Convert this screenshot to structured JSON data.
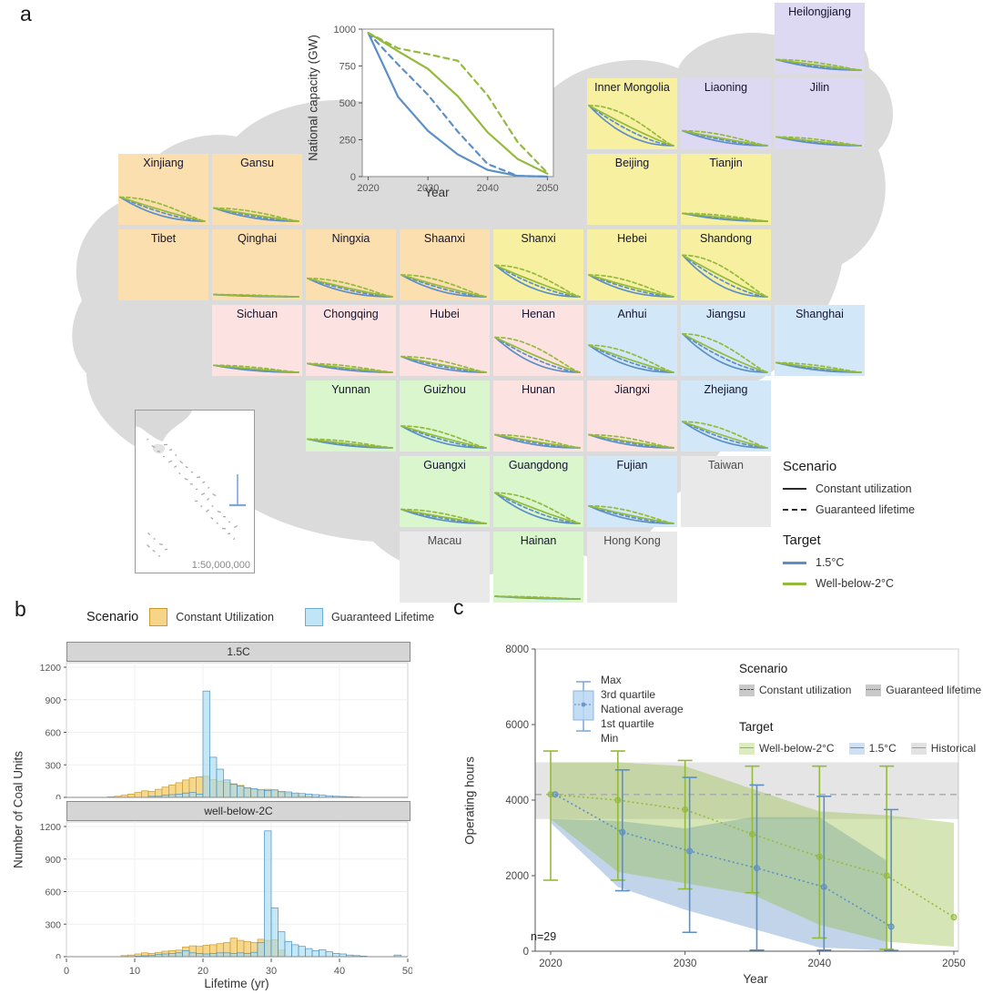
{
  "panels": {
    "a": "a",
    "b": "b",
    "c": "c"
  },
  "colors": {
    "target_blue": "#5d8fc7",
    "target_green": "#94ba3c",
    "hist_orange_fill": "#f6d588",
    "hist_orange_stroke": "#c99a28",
    "hist_blue_fill": "#a8daf0",
    "hist_blue_stroke": "#4b93c1",
    "map_gray": "#d9d9d9",
    "group_fills": {
      "northwest": "#fbdfae",
      "north": "#f6f0a0",
      "northeast": "#ded9f2",
      "central": "#fce3e1",
      "east": "#d2e8f8",
      "south": "#d9f6cd",
      "nodata": "#e9e9e9"
    }
  },
  "panel_a": {
    "legend": {
      "scenario_title": "Scenario",
      "scenario_items": [
        {
          "label": "Constant utilization",
          "style": "solid"
        },
        {
          "label": "Guaranteed lifetime",
          "style": "dashed"
        }
      ],
      "target_title": "Target",
      "target_items": [
        {
          "label": "1.5°C",
          "color": "#5d8fc7"
        },
        {
          "label": "Well-below-2°C",
          "color": "#94ba3c"
        }
      ]
    },
    "map_scale_label": "1:50,000,000",
    "tiles": [
      {
        "name": "Heilongjiang",
        "col": 7,
        "row": 0,
        "group": "northeast",
        "magnitude": 0.24
      },
      {
        "name": "Inner Mongolia",
        "col": 5,
        "row": 1,
        "group": "north",
        "magnitude": 0.92
      },
      {
        "name": "Liaoning",
        "col": 6,
        "row": 1,
        "group": "northeast",
        "magnitude": 0.34
      },
      {
        "name": "Jilin",
        "col": 7,
        "row": 1,
        "group": "northeast",
        "magnitude": 0.2
      },
      {
        "name": "Xinjiang",
        "col": 0,
        "row": 2,
        "group": "northwest",
        "magnitude": 0.55
      },
      {
        "name": "Gansu",
        "col": 1,
        "row": 2,
        "group": "northwest",
        "magnitude": 0.3
      },
      {
        "name": "Beijing",
        "col": 5,
        "row": 2,
        "group": "north",
        "magnitude": 0
      },
      {
        "name": "Tianjin",
        "col": 6,
        "row": 2,
        "group": "north",
        "magnitude": 0.18
      },
      {
        "name": "Tibet",
        "col": 0,
        "row": 3,
        "group": "northwest",
        "magnitude": 0
      },
      {
        "name": "Qinghai",
        "col": 1,
        "row": 3,
        "group": "northwest",
        "magnitude": 0.05
      },
      {
        "name": "Ningxia",
        "col": 2,
        "row": 3,
        "group": "northwest",
        "magnitude": 0.42
      },
      {
        "name": "Shaanxi",
        "col": 3,
        "row": 3,
        "group": "northwest",
        "magnitude": 0.5
      },
      {
        "name": "Shanxi",
        "col": 4,
        "row": 3,
        "group": "north",
        "magnitude": 0.72
      },
      {
        "name": "Hebei",
        "col": 5,
        "row": 3,
        "group": "north",
        "magnitude": 0.5
      },
      {
        "name": "Shandong",
        "col": 6,
        "row": 3,
        "group": "north",
        "magnitude": 0.95
      },
      {
        "name": "Sichuan",
        "col": 1,
        "row": 4,
        "group": "central",
        "magnitude": 0.16
      },
      {
        "name": "Chongqing",
        "col": 2,
        "row": 4,
        "group": "central",
        "magnitude": 0.2
      },
      {
        "name": "Hubei",
        "col": 3,
        "row": 4,
        "group": "central",
        "magnitude": 0.36
      },
      {
        "name": "Henan",
        "col": 4,
        "row": 4,
        "group": "central",
        "magnitude": 0.8
      },
      {
        "name": "Anhui",
        "col": 5,
        "row": 4,
        "group": "east",
        "magnitude": 0.62
      },
      {
        "name": "Jiangsu",
        "col": 6,
        "row": 4,
        "group": "east",
        "magnitude": 0.88
      },
      {
        "name": "Shanghai",
        "col": 7,
        "row": 4,
        "group": "east",
        "magnitude": 0.22
      },
      {
        "name": "Yunnan",
        "col": 2,
        "row": 5,
        "group": "south",
        "magnitude": 0.2
      },
      {
        "name": "Guizhou",
        "col": 3,
        "row": 5,
        "group": "south",
        "magnitude": 0.5
      },
      {
        "name": "Hunan",
        "col": 4,
        "row": 5,
        "group": "central",
        "magnitude": 0.3
      },
      {
        "name": "Jiangxi",
        "col": 5,
        "row": 5,
        "group": "central",
        "magnitude": 0.3
      },
      {
        "name": "Zhejiang",
        "col": 6,
        "row": 5,
        "group": "east",
        "magnitude": 0.6
      },
      {
        "name": "Guangxi",
        "col": 3,
        "row": 6,
        "group": "south",
        "magnitude": 0.32
      },
      {
        "name": "Guangdong",
        "col": 4,
        "row": 6,
        "group": "south",
        "magnitude": 0.7
      },
      {
        "name": "Fujian",
        "col": 5,
        "row": 6,
        "group": "east",
        "magnitude": 0.4
      },
      {
        "name": "Taiwan",
        "col": 6,
        "row": 6,
        "group": "nodata",
        "magnitude": 0
      },
      {
        "name": "Macau",
        "col": 3,
        "row": 7,
        "group": "nodata",
        "magnitude": 0
      },
      {
        "name": "Hainan",
        "col": 4,
        "row": 7,
        "group": "south",
        "magnitude": 0.06
      },
      {
        "name": "Hong Kong",
        "col": 5,
        "row": 7,
        "group": "nodata",
        "magnitude": 0
      }
    ]
  },
  "chart_data": [
    {
      "id": "national_capacity",
      "type": "line",
      "xlabel": "Year",
      "ylabel": "National capacity (GW)",
      "xlim": [
        2019,
        2051
      ],
      "ylim": [
        0,
        1000
      ],
      "xticks": [
        2020,
        2030,
        2040,
        2050
      ],
      "yticks": [
        0,
        250,
        500,
        750,
        1000
      ],
      "x": [
        2020,
        2025,
        2030,
        2035,
        2040,
        2045,
        2050
      ],
      "series": [
        {
          "name": "1.5°C Constant utilization",
          "color": "#5d8fc7",
          "dash": "solid",
          "values": [
            975,
            540,
            310,
            150,
            45,
            5,
            0
          ]
        },
        {
          "name": "1.5°C Guaranteed lifetime",
          "color": "#5d8fc7",
          "dash": "dashed",
          "values": [
            975,
            760,
            555,
            305,
            85,
            5,
            0
          ]
        },
        {
          "name": "Well-below-2°C Constant utilization",
          "color": "#94ba3c",
          "dash": "solid",
          "values": [
            975,
            850,
            730,
            545,
            300,
            120,
            20
          ]
        },
        {
          "name": "Well-below-2°C Guaranteed lifetime",
          "color": "#94ba3c",
          "dash": "dashed",
          "values": [
            975,
            870,
            830,
            785,
            550,
            235,
            25
          ]
        }
      ]
    },
    {
      "id": "lifetime_histogram",
      "type": "bar",
      "legend_title": "Scenario",
      "legend_items": [
        {
          "label": "Constant Utilization",
          "fill": "#f6d588",
          "stroke": "#c99a28"
        },
        {
          "label": "Guaranteed Lifetime",
          "fill": "#bfe5f6",
          "stroke": "#6aaed6"
        }
      ],
      "xlabel": "Lifetime (yr)",
      "ylabel": "Number of Coal Units",
      "xlim": [
        0,
        50
      ],
      "ylim": [
        0,
        1200
      ],
      "xticks": [
        0,
        10,
        20,
        30,
        40,
        50
      ],
      "yticks": [
        0,
        300,
        600,
        900,
        1200
      ],
      "facets": [
        {
          "strip": "1.5C",
          "constant_utilization": {
            "bin_start": 6,
            "counts": [
              5,
              10,
              20,
              30,
              45,
              60,
              55,
              75,
              95,
              115,
              135,
              160,
              180,
              190,
              195,
              165,
              150,
              140,
              125,
              110,
              85,
              75,
              70,
              75,
              60,
              45,
              35,
              25,
              15,
              10,
              5
            ]
          },
          "guaranteed_lifetime": {
            "bin_start": 12,
            "counts": [
              10,
              10,
              20,
              25,
              30,
              40,
              45,
              30,
              980,
              370,
              260,
              160,
              120,
              105,
              90,
              80,
              70,
              65,
              70,
              55,
              50,
              40,
              35,
              30,
              25,
              20,
              15,
              10,
              8,
              5,
              3
            ]
          }
        },
        {
          "strip": "well-below-2C",
          "constant_utilization": {
            "bin_start": 8,
            "counts": [
              10,
              15,
              25,
              35,
              30,
              40,
              50,
              55,
              60,
              90,
              100,
              95,
              105,
              110,
              120,
              130,
              170,
              150,
              140,
              130,
              160,
              150,
              155,
              60
            ]
          },
          "guaranteed_lifetime": {
            "bin_start": 10,
            "counts": [
              5,
              8,
              10,
              20,
              25,
              30,
              35,
              55,
              35,
              30,
              25,
              30,
              35,
              35,
              30,
              35,
              30,
              40,
              130,
              1160,
              450,
              230,
              140,
              110,
              95,
              75,
              55,
              65,
              45,
              30,
              25,
              15,
              10,
              5,
              0,
              0,
              0,
              0,
              15
            ]
          }
        }
      ]
    },
    {
      "id": "operating_hours",
      "type": "line",
      "xlabel": "Year",
      "ylabel": "Operating hours",
      "annotation": "n=29",
      "xlim": [
        2019,
        2051
      ],
      "ylim": [
        0,
        8000
      ],
      "xticks": [
        2020,
        2030,
        2040,
        2050
      ],
      "yticks": [
        0,
        2000,
        4000,
        6000,
        8000
      ],
      "historical_band": [
        3500,
        5000
      ],
      "historical_mean": 4150,
      "series": [
        {
          "name": "Well-below-2°C",
          "color": "#94ba3c",
          "x": [
            2020,
            2025,
            2030,
            2035,
            2040,
            2045,
            2050
          ],
          "mean": [
            4150,
            4000,
            3750,
            3100,
            2500,
            2000,
            900
          ],
          "whisker_low": [
            1880,
            1880,
            1650,
            1550,
            350,
            50,
            null
          ],
          "whisker_high": [
            5300,
            5300,
            5050,
            4900,
            4900,
            4900,
            null
          ],
          "band_low": [
            3500,
            2100,
            1800,
            1500,
            700,
            250,
            120
          ],
          "band_high": [
            5000,
            5000,
            4900,
            4300,
            3700,
            3600,
            3400
          ]
        },
        {
          "name": "1.5°C",
          "color": "#5d8fc7",
          "x": [
            2020,
            2025,
            2030,
            2035,
            2040,
            2045
          ],
          "mean": [
            4150,
            3150,
            2650,
            2200,
            1700,
            650
          ],
          "whisker_low": [
            null,
            1600,
            500,
            30,
            30,
            20
          ],
          "whisker_high": [
            null,
            4800,
            4600,
            4400,
            4100,
            3750
          ],
          "band_low": [
            3400,
            1700,
            1100,
            600,
            100,
            20
          ],
          "band_high": [
            3500,
            3450,
            3250,
            3550,
            3550,
            2400
          ]
        }
      ],
      "legend": {
        "box_labels": [
          "Max",
          "3rd quartile",
          "National average",
          "1st quartile",
          "Min"
        ],
        "scenario_title": "Scenario",
        "scenario_items": [
          {
            "label": "Constant utilization",
            "dash": "dashed"
          },
          {
            "label": "Guaranteed lifetime",
            "dash": "dotted"
          }
        ],
        "target_title": "Target",
        "target_items": [
          {
            "label": "Well-below-2°C",
            "color": "#94ba3c",
            "tint": "#dcebc0"
          },
          {
            "label": "1.5°C",
            "color": "#5d8fc7",
            "tint": "#cfe0f3"
          },
          {
            "label": "Historical",
            "color": "#9c9c9c",
            "tint": "#e2e2e2"
          }
        ]
      }
    }
  ]
}
